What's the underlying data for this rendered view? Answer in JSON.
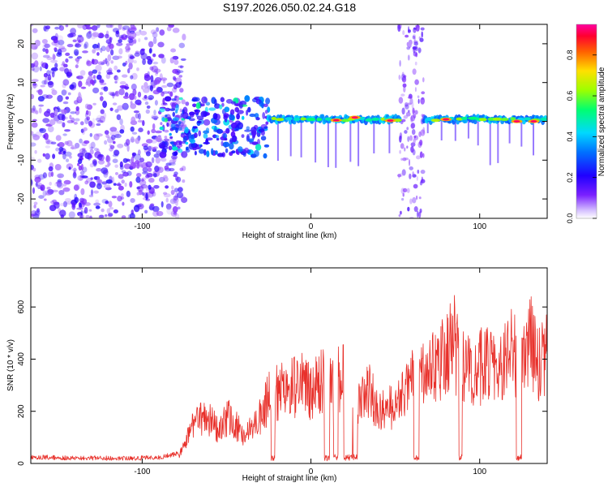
{
  "figure_title": "S197.2026.050.02.24.G18",
  "colors": {
    "snr_line": "#e8302a",
    "spectral_low": "#3a00e8",
    "spectral_high": "#ff0040"
  },
  "chart_data": [
    {
      "type": "heatmap",
      "title": "S197.2026.050.02.24.G18",
      "xlabel": "Height of straight line (km)",
      "ylabel": "Frequency (Hz)",
      "xlim": [
        -166,
        140
      ],
      "ylim": [
        -25,
        25
      ],
      "xticks": [
        -100,
        0,
        100
      ],
      "yticks": [
        -20,
        -10,
        0,
        10,
        20
      ],
      "grid": false,
      "colorbar": {
        "label": "Normalized spectral amplitude",
        "range": [
          0,
          0.95
        ],
        "ticks": [
          0.0,
          0.2,
          0.4,
          0.6,
          0.8
        ]
      },
      "features": {
        "noise_region_x": [
          -166,
          -75
        ],
        "transition_region_x": [
          -90,
          -25
        ],
        "ridge_frequency_hz": 0.5,
        "ridge_segments_x": [
          [
            -25,
            53
          ],
          [
            67,
            139
          ]
        ],
        "vertical_noise_band_x": [
          52,
          67
        ],
        "peak_ridge_points": [
          {
            "x": 15,
            "y": 0.3
          },
          {
            "x": 26,
            "y": 1.0
          },
          {
            "x": 47,
            "y": 0.2
          },
          {
            "x": 80,
            "y": 0.5
          },
          {
            "x": 122,
            "y": 0.0
          },
          {
            "x": 132,
            "y": 0.0
          }
        ]
      }
    },
    {
      "type": "line",
      "title": "",
      "xlabel": "Height of straight line (km)",
      "ylabel": "SNR (10 * v/v)",
      "xlim": [
        -166,
        140
      ],
      "ylim": [
        0,
        750
      ],
      "xticks": [
        -100,
        0,
        100
      ],
      "yticks": [
        0,
        200,
        400,
        600
      ],
      "grid": false,
      "series": [
        {
          "name": "SNR",
          "x": [
            -166,
            -150,
            -130,
            -110,
            -90,
            -78,
            -70,
            -62,
            -55,
            -48,
            -40,
            -32,
            -25,
            -18,
            -12,
            -5,
            0,
            8,
            15,
            22,
            28,
            35,
            40,
            45,
            50,
            55,
            62,
            68,
            75,
            80,
            85,
            88,
            92,
            98,
            105,
            112,
            118,
            125,
            130,
            135,
            140
          ],
          "values": [
            25,
            22,
            20,
            20,
            22,
            40,
            150,
            200,
            140,
            200,
            110,
            170,
            270,
            300,
            310,
            330,
            290,
            360,
            340,
            400,
            260,
            310,
            210,
            240,
            230,
            280,
            420,
            380,
            400,
            470,
            500,
            410,
            380,
            390,
            420,
            380,
            460,
            420,
            500,
            430,
            470
          ]
        }
      ]
    }
  ]
}
